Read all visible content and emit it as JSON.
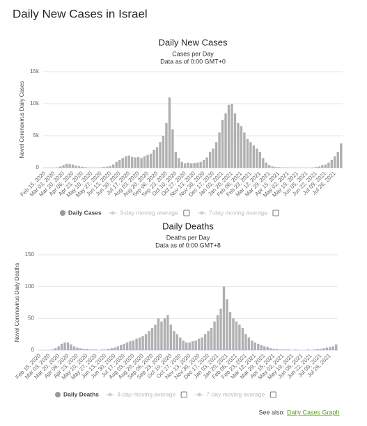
{
  "header": {
    "title": "Daily New Cases in Israel"
  },
  "footer": {
    "prefix": "See also:",
    "link": "Daily Cases Graph"
  },
  "chart_data": [
    {
      "type": "bar",
      "title": "Daily New Cases",
      "subtitle": "Cases per Day",
      "note": "Data as of 0:00 GMT+0",
      "y_label": "Novel Coronavirus Daily Cases",
      "categories": [
        "Feb 15, 2020",
        null,
        null,
        "Mar 03, 2020",
        null,
        null,
        "Mar 20, 2020",
        null,
        null,
        "Apr 06, 2020",
        null,
        null,
        "Apr 23, 2020",
        null,
        null,
        "May 10, 2020",
        null,
        null,
        "May 27, 2020",
        null,
        null,
        "Jun 13, 2020",
        null,
        null,
        "Jun 30, 2020",
        null,
        null,
        "Jul 17, 2020",
        null,
        null,
        "Aug 03, 2020",
        null,
        null,
        "Aug 20, 2020",
        null,
        null,
        "Sep 06, 2020",
        null,
        null,
        "Sep 23, 2020",
        null,
        null,
        "Oct 10, 2020",
        null,
        null,
        "Oct 27, 2020",
        null,
        null,
        "Nov 13, 2020",
        null,
        null,
        "Nov 30, 2020",
        null,
        null,
        "Dec 17, 2020",
        null,
        null,
        "Jan 03, 2021",
        null,
        null,
        "Jan 20, 2021",
        null,
        null,
        "Feb 06, 2021",
        null,
        null,
        "Feb 23, 2021",
        null,
        null,
        "Mar 12, 2021",
        null,
        null,
        "Mar 29, 2021",
        null,
        null,
        "Apr 15, 2021",
        null,
        null,
        "May 02, 2021",
        null,
        null,
        "May 19, 2021",
        null,
        null,
        "Jun 05, 2021",
        null,
        null,
        "Jun 22, 2021",
        null,
        null,
        "Jul 09, 2021",
        null,
        null,
        "Jul 26, 2021",
        null,
        null
      ],
      "series": [
        {
          "name": "Daily Cases",
          "color": "#b0b0b0",
          "values": [
            0,
            0,
            0,
            10,
            50,
            200,
            400,
            600,
            550,
            500,
            350,
            250,
            150,
            80,
            30,
            20,
            15,
            30,
            60,
            120,
            180,
            300,
            500,
            900,
            1200,
            1500,
            1800,
            1900,
            1700,
            1600,
            1700,
            1500,
            1800,
            2000,
            2200,
            2800,
            3200,
            4000,
            5000,
            7000,
            11000,
            6000,
            2500,
            1500,
            900,
            700,
            800,
            700,
            750,
            800,
            900,
            1200,
            1600,
            2500,
            3000,
            4000,
            5500,
            7500,
            8500,
            9800,
            10000,
            8500,
            7000,
            6500,
            5500,
            4500,
            4000,
            3500,
            3000,
            2500,
            1500,
            800,
            400,
            200,
            120,
            80,
            50,
            40,
            40,
            30,
            20,
            20,
            15,
            15,
            15,
            20,
            40,
            100,
            200,
            400,
            500,
            800,
            1200,
            1800,
            2500,
            3800
          ]
        }
      ],
      "legend_toggles": [
        "3-day moving average",
        "7-day moving average"
      ],
      "ylim": [
        0,
        15000
      ],
      "yticks": [
        0,
        {
          "value": 5000,
          "label": "5k"
        },
        {
          "value": 10000,
          "label": "10k"
        },
        {
          "value": 15000,
          "label": "15k"
        }
      ],
      "grid": true
    },
    {
      "type": "bar",
      "title": "Daily Deaths",
      "subtitle": "Deaths per Day",
      "note": "Data as of 0:00 GMT+8",
      "y_label": "Novel Coronavirus Daily Deaths",
      "categories": [
        "Feb 15, 2020",
        null,
        null,
        "Mar 03, 2020",
        null,
        null,
        "Mar 20, 2020",
        null,
        null,
        "Apr 06, 2020",
        null,
        null,
        "Apr 23, 2020",
        null,
        null,
        "May 10, 2020",
        null,
        null,
        "May 27, 2020",
        null,
        null,
        "Jun 13, 2020",
        null,
        null,
        "Jun 30, 2020",
        null,
        null,
        "Jul 17, 2020",
        null,
        null,
        "Aug 03, 2020",
        null,
        null,
        "Aug 20, 2020",
        null,
        null,
        "Sep 06, 2020",
        null,
        null,
        "Sep 23, 2020",
        null,
        null,
        "Oct 10, 2020",
        null,
        null,
        "Oct 27, 2020",
        null,
        null,
        "Nov 13, 2020",
        null,
        null,
        "Nov 30, 2020",
        null,
        null,
        "Dec 17, 2020",
        null,
        null,
        "Jan 03, 2021",
        null,
        null,
        "Jan 20, 2021",
        null,
        null,
        "Feb 06, 2021",
        null,
        null,
        "Feb 23, 2021",
        null,
        null,
        "Mar 12, 2021",
        null,
        null,
        "Mar 29, 2021",
        null,
        null,
        "Apr 15, 2021",
        null,
        null,
        "May 02, 2021",
        null,
        null,
        "May 19, 2021",
        null,
        null,
        "Jun 05, 2021",
        null,
        null,
        "Jun 22, 2021",
        null,
        null,
        "Jul 09, 2021",
        null,
        null,
        "Jul 26, 2021",
        null,
        null
      ],
      "series": [
        {
          "name": "Daily Deaths",
          "color": "#b0b0b0",
          "values": [
            0,
            0,
            0,
            0,
            1,
            3,
            6,
            10,
            12,
            12,
            9,
            6,
            4,
            3,
            2,
            2,
            1,
            1,
            1,
            0,
            1,
            1,
            2,
            3,
            4,
            6,
            8,
            10,
            12,
            14,
            15,
            18,
            20,
            22,
            25,
            30,
            35,
            40,
            50,
            45,
            50,
            55,
            40,
            30,
            25,
            20,
            15,
            12,
            12,
            14,
            15,
            18,
            20,
            25,
            30,
            35,
            45,
            55,
            65,
            100,
            80,
            60,
            50,
            45,
            40,
            35,
            25,
            20,
            15,
            12,
            10,
            8,
            6,
            5,
            3,
            2,
            2,
            1,
            1,
            1,
            1,
            0,
            1,
            0,
            0,
            0,
            1,
            0,
            1,
            2,
            2,
            3,
            4,
            5,
            6,
            9
          ]
        }
      ],
      "legend_toggles": [
        "3-day moving average",
        "7-day moving average"
      ],
      "ylim": [
        0,
        150
      ],
      "yticks": [
        0,
        50,
        100,
        150
      ],
      "grid": true
    }
  ]
}
